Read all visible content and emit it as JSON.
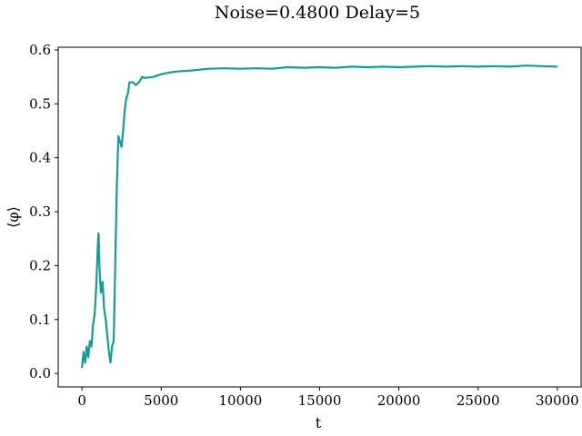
{
  "chart_data": {
    "type": "line",
    "title": "Noise=0.4800 Delay=5",
    "xlabel": "t",
    "ylabel": "⟨φ⟩",
    "xlim": [
      -1500,
      31500
    ],
    "ylim": [
      -0.025,
      0.605
    ],
    "x_ticks": [
      0,
      5000,
      10000,
      15000,
      20000,
      25000,
      30000
    ],
    "x_tick_labels": [
      "0",
      "5000",
      "10000",
      "15000",
      "20000",
      "25000",
      "30000"
    ],
    "y_ticks": [
      0.0,
      0.1,
      0.2,
      0.3,
      0.4,
      0.5,
      0.6
    ],
    "y_tick_labels": [
      "0.0",
      "0.1",
      "0.2",
      "0.3",
      "0.4",
      "0.5",
      "0.6"
    ],
    "grid": false,
    "line_color": "#119e99",
    "series": [
      {
        "x": [
          0,
          100,
          200,
          300,
          400,
          500,
          600,
          700,
          800,
          900,
          1000,
          1050,
          1100,
          1150,
          1200,
          1300,
          1400,
          1500,
          1600,
          1700,
          1800,
          1900,
          2000,
          2100,
          2200,
          2300,
          2400,
          2500,
          2600,
          2700,
          2800,
          2900,
          3000,
          3200,
          3400,
          3600,
          3800,
          4000,
          4500,
          5000,
          5500,
          6000,
          7000,
          8000,
          9000,
          10000,
          11000,
          12000,
          13000,
          14000,
          15000,
          16000,
          17000,
          18000,
          19000,
          20000,
          21000,
          22000,
          23000,
          24000,
          25000,
          26000,
          27000,
          28000,
          29000,
          30000
        ],
        "y": [
          0.01,
          0.04,
          0.02,
          0.05,
          0.03,
          0.06,
          0.05,
          0.09,
          0.11,
          0.16,
          0.24,
          0.26,
          0.2,
          0.17,
          0.15,
          0.17,
          0.12,
          0.1,
          0.07,
          0.04,
          0.02,
          0.05,
          0.06,
          0.2,
          0.35,
          0.44,
          0.43,
          0.42,
          0.45,
          0.49,
          0.51,
          0.52,
          0.54,
          0.54,
          0.535,
          0.54,
          0.55,
          0.548,
          0.55,
          0.555,
          0.558,
          0.56,
          0.562,
          0.565,
          0.566,
          0.565,
          0.566,
          0.565,
          0.568,
          0.567,
          0.568,
          0.567,
          0.569,
          0.568,
          0.569,
          0.568,
          0.569,
          0.57,
          0.569,
          0.57,
          0.569,
          0.57,
          0.569,
          0.571,
          0.57,
          0.569
        ]
      }
    ]
  }
}
